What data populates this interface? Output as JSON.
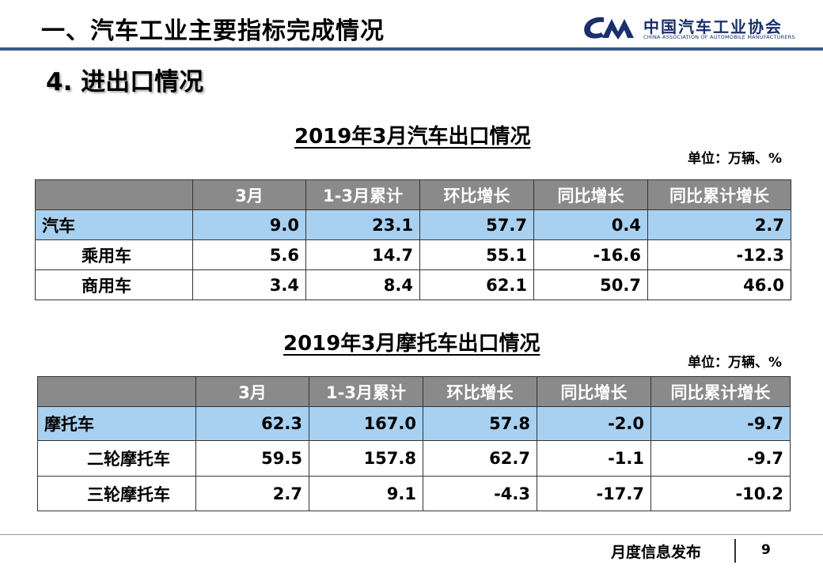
{
  "header": {
    "title": "一、汽车工业主要指标完成情况",
    "logo_cn": "中国汽车工业协会",
    "logo_en": "CHINA ASSOCIATION OF AUTOMOBILE MANUFACTURERS",
    "logo_color": "#1a2f6b"
  },
  "section_title": "4. 进出口情况",
  "table1": {
    "title": "2019年3月汽车出口情况",
    "unit": "单位：万辆、%",
    "columns": [
      "",
      "3月",
      "1-3月累计",
      "环比增长",
      "同比增长",
      "同比累计增长"
    ],
    "rows": [
      [
        "汽车",
        "9.0",
        "23.1",
        "57.7",
        "0.4",
        "2.7"
      ],
      [
        "乘用车",
        "5.6",
        "14.7",
        "55.1",
        "-16.6",
        "-12.3"
      ],
      [
        "商用车",
        "3.4",
        "8.4",
        "62.1",
        "50.7",
        "46.0"
      ]
    ]
  },
  "table2": {
    "title": "2019年3月摩托车出口情况",
    "unit": "单位：万辆、%",
    "columns": [
      "",
      "3月",
      "1-3月累计",
      "环比增长",
      "同比增长",
      "同比累计增长"
    ],
    "rows": [
      [
        "摩托车",
        "62.3",
        "167.0",
        "57.8",
        "-2.0",
        "-9.7"
      ],
      [
        "二轮摩托车",
        "59.5",
        "157.8",
        "62.7",
        "-1.1",
        "-9.7"
      ],
      [
        "三轮摩托车",
        "2.7",
        "9.1",
        "-4.3",
        "-17.7",
        "-10.2"
      ]
    ]
  },
  "footer": {
    "label": "月度信息发布",
    "page": "9"
  },
  "colors": {
    "header_cell": "#8a8a8a",
    "highlight_row": "#a8d0f0",
    "rule": "#3b5a86"
  }
}
